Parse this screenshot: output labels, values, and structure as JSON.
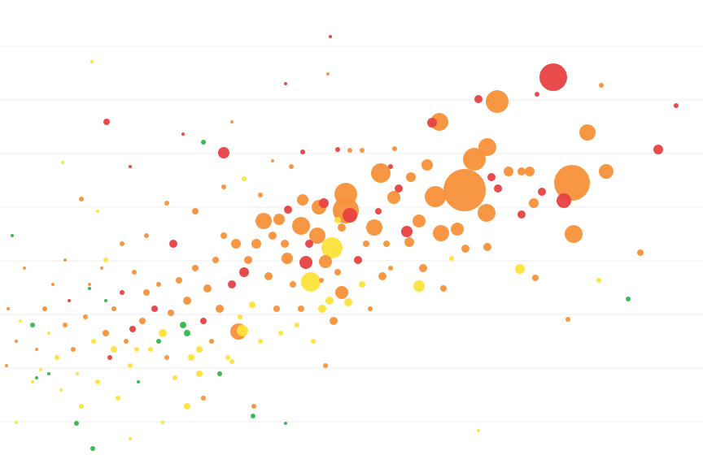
{
  "chart_data": {
    "type": "scatter",
    "variant": "bubble",
    "title": "",
    "xlabel": "",
    "ylabel": "",
    "xlim": [
      0,
      86.4
    ],
    "ylim": [
      0,
      57.6
    ],
    "grid": true,
    "grid_lines_y": [
      5.7,
      12.3,
      18.9,
      25.5,
      32.1,
      38.7,
      45.3,
      51.9
    ],
    "legend": "none",
    "palette": [
      "#e84142",
      "#f7913a",
      "#fde33b",
      "#2fb84b"
    ],
    "point_fields": [
      "x",
      "y",
      "size",
      "color_index"
    ],
    "points": [
      [
        68.0,
        48.1,
        17,
        0
      ],
      [
        61.1,
        45.1,
        14,
        1
      ],
      [
        54.0,
        42.6,
        11,
        1
      ],
      [
        53.1,
        42.5,
        6,
        0
      ],
      [
        58.8,
        45.4,
        5,
        0
      ],
      [
        73.9,
        47.1,
        3,
        1
      ],
      [
        66.0,
        46.0,
        3,
        0
      ],
      [
        83.1,
        44.6,
        3,
        0
      ],
      [
        72.2,
        41.3,
        10,
        1
      ],
      [
        80.9,
        39.2,
        6,
        0
      ],
      [
        59.9,
        39.5,
        11,
        1
      ],
      [
        58.3,
        38.0,
        14,
        1
      ],
      [
        57.1,
        34.2,
        26,
        1
      ],
      [
        70.3,
        35.1,
        22,
        1
      ],
      [
        69.3,
        32.9,
        9,
        0
      ],
      [
        74.5,
        36.5,
        9,
        1
      ],
      [
        70.5,
        28.8,
        11,
        1
      ],
      [
        53.5,
        33.4,
        13,
        1
      ],
      [
        59.8,
        31.4,
        11,
        1
      ],
      [
        46.8,
        36.3,
        12,
        1
      ],
      [
        42.5,
        33.7,
        14,
        1
      ],
      [
        42.5,
        31.7,
        16,
        1
      ],
      [
        43.0,
        31.1,
        9,
        0
      ],
      [
        46.0,
        29.6,
        10,
        1
      ],
      [
        40.8,
        27.1,
        13,
        2
      ],
      [
        38.2,
        22.9,
        12,
        2
      ],
      [
        39.0,
        28.6,
        10,
        1
      ],
      [
        37.0,
        29.8,
        11,
        1
      ],
      [
        39.2,
        32.1,
        9,
        1
      ],
      [
        37.2,
        33.0,
        7,
        1
      ],
      [
        32.4,
        30.4,
        10,
        1
      ],
      [
        34.3,
        30.6,
        7,
        1
      ],
      [
        35.4,
        31.8,
        5,
        0
      ],
      [
        37.6,
        25.3,
        8,
        0
      ],
      [
        40.0,
        25.4,
        8,
        1
      ],
      [
        35.3,
        25.8,
        7,
        1
      ],
      [
        29.3,
        16.8,
        10,
        1
      ],
      [
        29.8,
        16.9,
        7,
        2
      ],
      [
        54.2,
        28.9,
        10,
        1
      ],
      [
        56.2,
        29.4,
        8,
        1
      ],
      [
        51.5,
        30.4,
        8,
        1
      ],
      [
        50.0,
        29.1,
        7,
        0
      ],
      [
        48.4,
        33.3,
        8,
        1
      ],
      [
        50.3,
        27.8,
        6,
        1
      ],
      [
        52.5,
        37.3,
        7,
        1
      ],
      [
        50.5,
        35.8,
        6,
        1
      ],
      [
        49.0,
        34.4,
        5,
        0
      ],
      [
        62.5,
        36.5,
        6,
        1
      ],
      [
        65.1,
        36.5,
        6,
        1
      ],
      [
        64.1,
        36.5,
        5,
        1
      ],
      [
        60.4,
        35.8,
        5,
        0
      ],
      [
        61.2,
        34.4,
        5,
        0
      ],
      [
        66.6,
        34.0,
        5,
        0
      ],
      [
        65.6,
        32.6,
        6,
        1
      ],
      [
        64.1,
        31.2,
        5,
        0
      ],
      [
        63.9,
        24.5,
        6,
        2
      ],
      [
        65.8,
        23.4,
        4,
        1
      ],
      [
        51.5,
        22.4,
        7,
        2
      ],
      [
        59.9,
        27.2,
        5,
        1
      ],
      [
        57.2,
        27.0,
        5,
        1
      ],
      [
        42.0,
        21.6,
        8,
        1
      ],
      [
        40.5,
        20.6,
        5,
        2
      ],
      [
        39.6,
        19.6,
        5,
        2
      ],
      [
        42.8,
        20.4,
        5,
        2
      ],
      [
        27.5,
        38.8,
        7,
        0
      ],
      [
        13.1,
        42.6,
        4,
        0
      ],
      [
        40.6,
        53.1,
        2,
        0
      ],
      [
        35.1,
        47.3,
        2,
        0
      ],
      [
        40.3,
        48.5,
        2,
        1
      ],
      [
        77.2,
        20.8,
        3,
        3
      ],
      [
        78.7,
        26.5,
        4,
        1
      ],
      [
        73.6,
        23.1,
        3,
        2
      ],
      [
        69.8,
        18.3,
        3,
        1
      ],
      [
        40.0,
        12.6,
        3,
        1
      ],
      [
        58.8,
        4.6,
        2,
        2
      ],
      [
        11.4,
        2.4,
        3,
        3
      ],
      [
        9.4,
        5.5,
        3,
        3
      ],
      [
        31.1,
        6.4,
        3,
        3
      ],
      [
        35.1,
        5.5,
        2,
        3
      ],
      [
        31.2,
        7.6,
        3,
        1
      ],
      [
        1.0,
        19.6,
        2,
        1
      ],
      [
        1.5,
        28.6,
        2,
        3
      ],
      [
        2.0,
        15.6,
        2,
        1
      ],
      [
        2.5,
        18.1,
        2,
        2
      ],
      [
        3.0,
        24.6,
        2,
        1
      ],
      [
        4.0,
        17.6,
        3,
        3
      ],
      [
        4.5,
        14.6,
        2,
        1
      ],
      [
        5.0,
        12.1,
        2,
        2
      ],
      [
        5.5,
        19.6,
        3,
        1
      ],
      [
        6.0,
        16.6,
        2,
        2
      ],
      [
        6.5,
        22.6,
        2,
        1
      ],
      [
        7.0,
        13.6,
        3,
        2
      ],
      [
        7.5,
        9.6,
        2,
        2
      ],
      [
        8.0,
        17.6,
        3,
        1
      ],
      [
        8.5,
        20.6,
        2,
        0
      ],
      [
        9.0,
        14.6,
        3,
        1
      ],
      [
        9.5,
        11.6,
        2,
        2
      ],
      [
        10.0,
        7.6,
        3,
        2
      ],
      [
        10.5,
        18.6,
        3,
        1
      ],
      [
        11.0,
        22.6,
        2,
        1
      ],
      [
        11.5,
        15.6,
        3,
        2
      ],
      [
        12.0,
        10.6,
        3,
        2
      ],
      [
        12.5,
        24.6,
        2,
        1
      ],
      [
        13.0,
        16.6,
        4,
        1
      ],
      [
        13.5,
        13.6,
        3,
        0
      ],
      [
        14.0,
        19.6,
        3,
        1
      ],
      [
        14.5,
        8.6,
        3,
        2
      ],
      [
        15.0,
        21.6,
        3,
        0
      ],
      [
        15.5,
        15.6,
        3,
        1
      ],
      [
        16.0,
        12.6,
        3,
        2
      ],
      [
        16.3,
        17.1,
        4,
        0
      ],
      [
        16.5,
        24.1,
        3,
        1
      ],
      [
        17.0,
        10.6,
        2,
        3
      ],
      [
        17.5,
        18.1,
        4,
        1
      ],
      [
        18.0,
        21.6,
        4,
        1
      ],
      [
        18.5,
        14.6,
        3,
        2
      ],
      [
        19.0,
        19.6,
        4,
        0
      ],
      [
        19.5,
        22.6,
        3,
        1
      ],
      [
        20.0,
        16.6,
        5,
        2
      ],
      [
        20.5,
        13.6,
        3,
        1
      ],
      [
        21.0,
        19.1,
        4,
        1
      ],
      [
        21.3,
        27.6,
        5,
        0
      ],
      [
        21.5,
        11.1,
        3,
        2
      ],
      [
        22.0,
        23.1,
        4,
        1
      ],
      [
        22.5,
        17.6,
        4,
        3
      ],
      [
        23.0,
        20.6,
        5,
        1
      ],
      [
        23.5,
        13.6,
        4,
        2
      ],
      [
        24.0,
        24.6,
        4,
        1
      ],
      [
        24.5,
        11.6,
        4,
        2
      ],
      [
        25.0,
        18.1,
        4,
        0
      ],
      [
        25.5,
        22.1,
        5,
        1
      ],
      [
        26.0,
        15.6,
        3,
        1
      ],
      [
        26.5,
        25.6,
        4,
        1
      ],
      [
        27.0,
        19.6,
        5,
        1
      ],
      [
        27.5,
        28.6,
        4,
        1
      ],
      [
        28.0,
        13.6,
        3,
        2
      ],
      [
        28.5,
        22.6,
        5,
        0
      ],
      [
        29.0,
        27.6,
        6,
        1
      ],
      [
        29.5,
        18.6,
        3,
        2
      ],
      [
        30.0,
        24.1,
        6,
        0
      ],
      [
        30.5,
        25.6,
        5,
        1
      ],
      [
        31.0,
        20.1,
        4,
        2
      ],
      [
        31.5,
        27.6,
        6,
        1
      ],
      [
        32.0,
        15.6,
        3,
        2
      ],
      [
        33.0,
        23.6,
        5,
        1
      ],
      [
        33.5,
        28.6,
        5,
        1
      ],
      [
        34.0,
        19.6,
        4,
        1
      ],
      [
        34.5,
        16.6,
        3,
        2
      ],
      [
        35.0,
        27.6,
        5,
        1
      ],
      [
        36.0,
        22.6,
        4,
        1
      ],
      [
        36.5,
        17.6,
        3,
        2
      ],
      [
        37.0,
        19.6,
        4,
        1
      ],
      [
        38.0,
        27.6,
        5,
        0
      ],
      [
        38.5,
        15.6,
        3,
        2
      ],
      [
        39.5,
        23.1,
        3,
        1
      ],
      [
        41.0,
        18.1,
        5,
        1
      ],
      [
        41.5,
        24.1,
        4,
        1
      ],
      [
        42.0,
        29.6,
        5,
        1
      ],
      [
        44.0,
        25.6,
        5,
        0
      ],
      [
        44.5,
        22.6,
        4,
        2
      ],
      [
        45.0,
        27.6,
        4,
        1
      ],
      [
        45.5,
        19.6,
        3,
        1
      ],
      [
        46.5,
        31.6,
        4,
        0
      ],
      [
        47.0,
        23.6,
        5,
        1
      ],
      [
        47.5,
        27.6,
        4,
        1
      ],
      [
        48.0,
        24.6,
        3,
        1
      ],
      [
        52.0,
        24.6,
        5,
        1
      ],
      [
        54.5,
        22.1,
        4,
        1
      ],
      [
        55.5,
        25.8,
        3,
        2
      ],
      [
        48.0,
        37.1,
        3,
        0
      ],
      [
        43.0,
        39.1,
        3,
        1
      ],
      [
        44.5,
        39.1,
        3,
        1
      ],
      [
        48.5,
        39.3,
        3,
        1
      ],
      [
        41.5,
        39.2,
        3,
        0
      ],
      [
        30.0,
        35.6,
        3,
        2
      ],
      [
        27.5,
        34.6,
        3,
        1
      ],
      [
        25.0,
        40.1,
        3,
        3
      ],
      [
        22.5,
        41.1,
        2,
        0
      ],
      [
        16.0,
        37.1,
        2,
        0
      ],
      [
        10.0,
        33.1,
        3,
        1
      ],
      [
        12.0,
        31.6,
        2,
        2
      ],
      [
        8.0,
        25.6,
        2,
        1
      ],
      [
        33.5,
        37.8,
        2,
        1
      ],
      [
        37.2,
        38.9,
        3,
        0
      ],
      [
        35.8,
        37.1,
        3,
        1
      ],
      [
        32.0,
        33.6,
        3,
        1
      ],
      [
        24.0,
        31.6,
        4,
        1
      ],
      [
        20.5,
        32.6,
        3,
        1
      ],
      [
        18.0,
        28.6,
        3,
        1
      ],
      [
        15.0,
        27.6,
        3,
        1
      ],
      [
        13.0,
        25.6,
        3,
        2
      ],
      [
        6.0,
        11.6,
        2,
        3
      ],
      [
        4.0,
        10.6,
        2,
        2
      ],
      [
        2.0,
        5.6,
        2,
        2
      ],
      [
        0.8,
        12.6,
        2,
        1
      ],
      [
        16.0,
        3.6,
        2,
        2
      ],
      [
        20.0,
        5.6,
        2,
        2
      ],
      [
        25.0,
        8.6,
        3,
        1
      ],
      [
        27.0,
        11.6,
        3,
        3
      ],
      [
        28.5,
        13.1,
        3,
        2
      ],
      [
        23.0,
        7.6,
        4,
        2
      ],
      [
        24.5,
        14.6,
        4,
        2
      ],
      [
        23.0,
        16.6,
        4,
        3
      ],
      [
        19.5,
        15.6,
        3,
        3
      ],
      [
        13.0,
        20.6,
        2,
        3
      ],
      [
        11.0,
        22.1,
        2,
        3
      ],
      [
        4.5,
        11.1,
        2,
        3
      ],
      [
        16.8,
        14.6,
        3,
        2
      ],
      [
        14.0,
        14.6,
        4,
        2
      ],
      [
        11.3,
        50.0,
        2,
        2
      ],
      [
        7.7,
        37.6,
        2,
        2
      ],
      [
        28.5,
        42.6,
        2,
        1
      ],
      [
        39.8,
        32.6,
        6,
        0
      ],
      [
        41.5,
        30.5,
        4,
        2
      ]
    ]
  }
}
